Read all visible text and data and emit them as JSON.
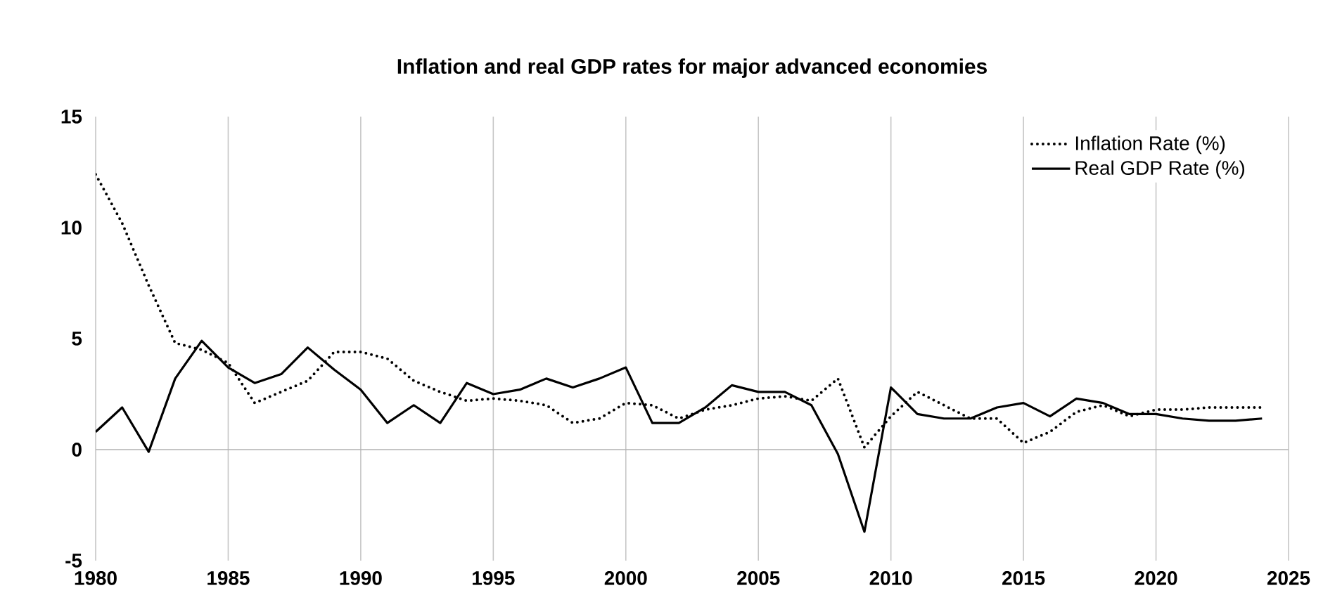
{
  "chart_data": {
    "type": "line",
    "title": "Inflation and real GDP rates for major advanced economies",
    "x": [
      1980,
      1981,
      1982,
      1983,
      1984,
      1985,
      1986,
      1987,
      1988,
      1989,
      1990,
      1991,
      1992,
      1993,
      1994,
      1995,
      1996,
      1997,
      1998,
      1999,
      2000,
      2001,
      2002,
      2003,
      2004,
      2005,
      2006,
      2007,
      2008,
      2009,
      2010,
      2011,
      2012,
      2013,
      2014,
      2015,
      2016,
      2017,
      2018,
      2019,
      2020,
      2021,
      2022,
      2023,
      2024
    ],
    "series": [
      {
        "name": "Inflation Rate (%)",
        "color": "#000000",
        "line_style": "dotted",
        "values": [
          12.4,
          10.2,
          7.4,
          4.8,
          4.5,
          3.9,
          2.1,
          2.6,
          3.1,
          4.4,
          4.4,
          4.1,
          3.1,
          2.6,
          2.2,
          2.3,
          2.2,
          2.0,
          1.2,
          1.4,
          2.1,
          2.0,
          1.4,
          1.8,
          2.0,
          2.3,
          2.4,
          2.2,
          3.2,
          0.1,
          1.5,
          2.6,
          2.0,
          1.4,
          1.4,
          0.3,
          0.8,
          1.7,
          2.0,
          1.5,
          1.8,
          1.8,
          1.9,
          1.9,
          1.9
        ]
      },
      {
        "name": "Real GDP Rate (%)",
        "color": "#000000",
        "line_style": "solid",
        "values": [
          0.8,
          1.9,
          -0.1,
          3.2,
          4.9,
          3.7,
          3.0,
          3.4,
          4.6,
          3.6,
          2.7,
          1.2,
          2.0,
          1.2,
          3.0,
          2.5,
          2.7,
          3.2,
          2.8,
          3.2,
          3.7,
          1.2,
          1.2,
          1.9,
          2.9,
          2.6,
          2.6,
          2.0,
          -0.2,
          -3.7,
          2.8,
          1.6,
          1.4,
          1.4,
          1.9,
          2.1,
          1.5,
          2.3,
          2.1,
          1.6,
          1.6,
          1.4,
          1.3,
          1.3,
          1.4
        ]
      }
    ],
    "xlim": [
      1980,
      2025
    ],
    "xticks": [
      1980,
      1985,
      1990,
      1995,
      2000,
      2005,
      2010,
      2015,
      2020,
      2025
    ],
    "ylim": [
      -5,
      15
    ],
    "yticks": [
      -5,
      0,
      5,
      10,
      15
    ],
    "grid": "x",
    "legend": "top right",
    "marker": "none"
  }
}
